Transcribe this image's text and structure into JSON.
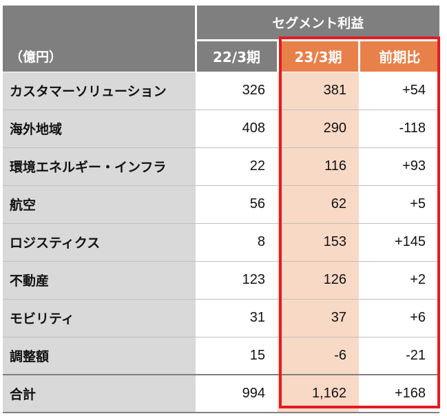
{
  "table": {
    "unit_label": "（億円）",
    "group_header": "セグメント利益",
    "columns": {
      "prev": "22/3期",
      "current": "23/3期",
      "diff": "前期比"
    },
    "rows": [
      {
        "segment": "カスタマーソリューション",
        "prev": "326",
        "current": "381",
        "diff": "+54"
      },
      {
        "segment": "海外地域",
        "prev": "408",
        "current": "290",
        "diff": "-118"
      },
      {
        "segment": "環境エネルギー・インフラ",
        "prev": "22",
        "current": "116",
        "diff": "+93"
      },
      {
        "segment": "航空",
        "prev": "56",
        "current": "62",
        "diff": "+5"
      },
      {
        "segment": "ロジスティクス",
        "prev": "8",
        "current": "153",
        "diff": "+145"
      },
      {
        "segment": "不動産",
        "prev": "123",
        "current": "126",
        "diff": "+2"
      },
      {
        "segment": "モビリティ",
        "prev": "31",
        "current": "37",
        "diff": "+6"
      },
      {
        "segment": "調整額",
        "prev": "15",
        "current": "-6",
        "diff": "-21"
      },
      {
        "segment": "合計",
        "prev": "994",
        "current": "1,162",
        "diff": "+168"
      }
    ]
  },
  "colors": {
    "header_gray": "#7f7f7f",
    "header_orange": "#e8804a",
    "label_gray": "#d9d9d9",
    "current_fill": "#f8d9c6",
    "highlight_red": "#e21b22"
  }
}
